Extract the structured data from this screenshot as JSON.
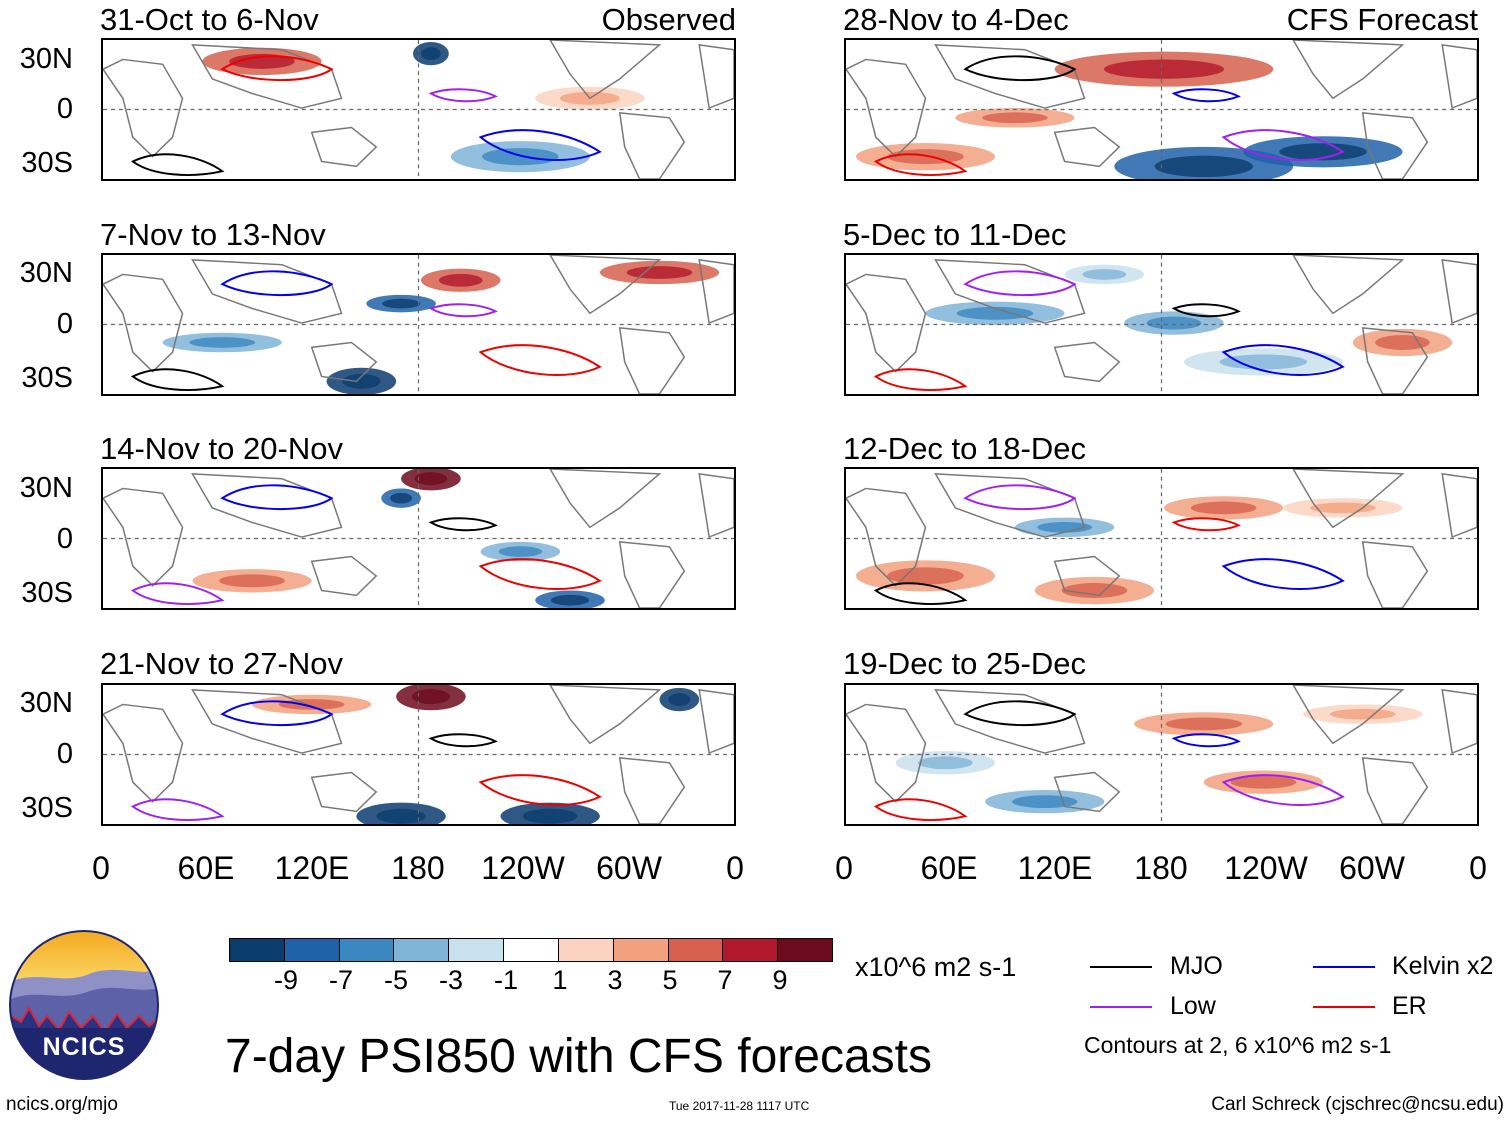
{
  "panels_left": [
    {
      "title": "31-Oct to 6-Nov",
      "label": "Observed"
    },
    {
      "title": "7-Nov to 13-Nov",
      "label": ""
    },
    {
      "title": "14-Nov to 20-Nov",
      "label": ""
    },
    {
      "title": "21-Nov to 27-Nov",
      "label": ""
    }
  ],
  "panels_right": [
    {
      "title": "28-Nov to 4-Dec",
      "label": "CFS Forecast"
    },
    {
      "title": "5-Dec to 11-Dec",
      "label": ""
    },
    {
      "title": "12-Dec to 18-Dec",
      "label": ""
    },
    {
      "title": "19-Dec to 25-Dec",
      "label": ""
    }
  ],
  "lat_labels": [
    "30N",
    "0",
    "30S"
  ],
  "lon_labels": [
    "0",
    "60E",
    "120E",
    "180",
    "120W",
    "60W",
    "0"
  ],
  "colorbar": {
    "ticks": [
      "-9",
      "-7",
      "-5",
      "-3",
      "-1",
      "1",
      "3",
      "5",
      "7",
      "9"
    ],
    "colors": [
      "#0b3c6e",
      "#1f62a8",
      "#3b87c1",
      "#7fb4d7",
      "#c9e0ef",
      "#ffffff",
      "#fcd3c0",
      "#f2a07e",
      "#d6604d",
      "#b2182b",
      "#6d0b1e"
    ],
    "units": "x10^6 m2 s-1"
  },
  "legend": {
    "items": [
      {
        "label": "MJO",
        "color": "#000000"
      },
      {
        "label": "Kelvin x2",
        "color": "#0000ee"
      },
      {
        "label": "Low",
        "color": "#a020f0"
      },
      {
        "label": "ER",
        "color": "#ee0000"
      }
    ],
    "contour_note": "Contours at 2, 6 x10^6 m2 s-1"
  },
  "title": "7-day PSI850 with CFS forecasts",
  "logo_text": "NCICS",
  "footer": {
    "left": "ncics.org/mjo",
    "center": "Tue 2017-11-28 1117 UTC",
    "right": "Carl Schreck (cjschrec@ncsu.edu)"
  }
}
